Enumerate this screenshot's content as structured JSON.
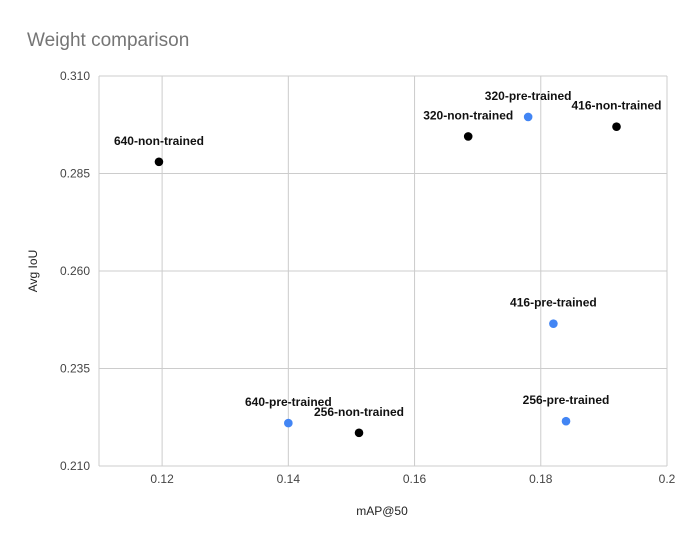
{
  "chart_data": {
    "type": "scatter",
    "title": "Weight comparison",
    "xlabel": "mAP@50",
    "ylabel": "Avg IoU",
    "xlim": [
      0.11,
      0.2
    ],
    "ylim": [
      0.21,
      0.31
    ],
    "x_ticks": [
      "0.12",
      "0.14",
      "0.16",
      "0.18",
      "0.2"
    ],
    "y_ticks": [
      "0.210",
      "0.235",
      "0.260",
      "0.285",
      "0.310"
    ],
    "grid": true,
    "legend": "none",
    "colors": {
      "non-trained": "#000000",
      "pre-trained": "#4285f4"
    },
    "points": [
      {
        "label": "640-non-trained",
        "x": 0.1195,
        "y": 0.288,
        "group": "non-trained"
      },
      {
        "label": "320-non-trained",
        "x": 0.1685,
        "y": 0.2945,
        "group": "non-trained"
      },
      {
        "label": "320-pre-trained",
        "x": 0.178,
        "y": 0.2995,
        "group": "pre-trained"
      },
      {
        "label": "416-non-trained",
        "x": 0.192,
        "y": 0.297,
        "group": "non-trained"
      },
      {
        "label": "416-pre-trained",
        "x": 0.182,
        "y": 0.2465,
        "group": "pre-trained"
      },
      {
        "label": "640-pre-trained",
        "x": 0.14,
        "y": 0.221,
        "group": "pre-trained"
      },
      {
        "label": "256-non-trained",
        "x": 0.1512,
        "y": 0.2185,
        "group": "non-trained"
      },
      {
        "label": "256-pre-trained",
        "x": 0.184,
        "y": 0.2215,
        "group": "pre-trained"
      }
    ]
  }
}
